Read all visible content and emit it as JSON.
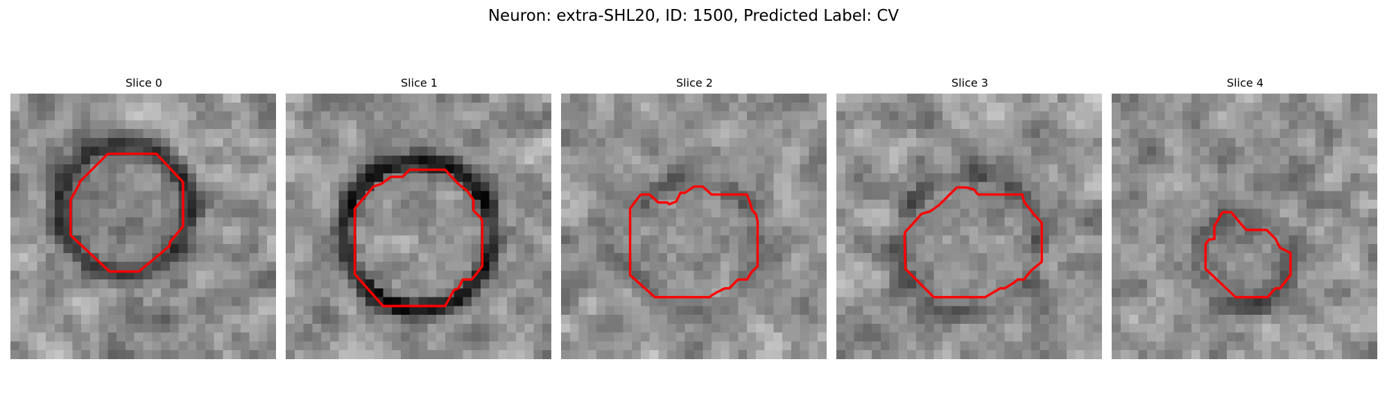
{
  "figure": {
    "title": "Neuron: extra-SHL20, ID: 1500, Predicted Label: CV",
    "outline_color": "#ff0000"
  },
  "slices": [
    {
      "label": "Slice 0"
    },
    {
      "label": "Slice 1"
    },
    {
      "label": "Slice 2"
    },
    {
      "label": "Slice 3"
    },
    {
      "label": "Slice 4"
    }
  ]
}
